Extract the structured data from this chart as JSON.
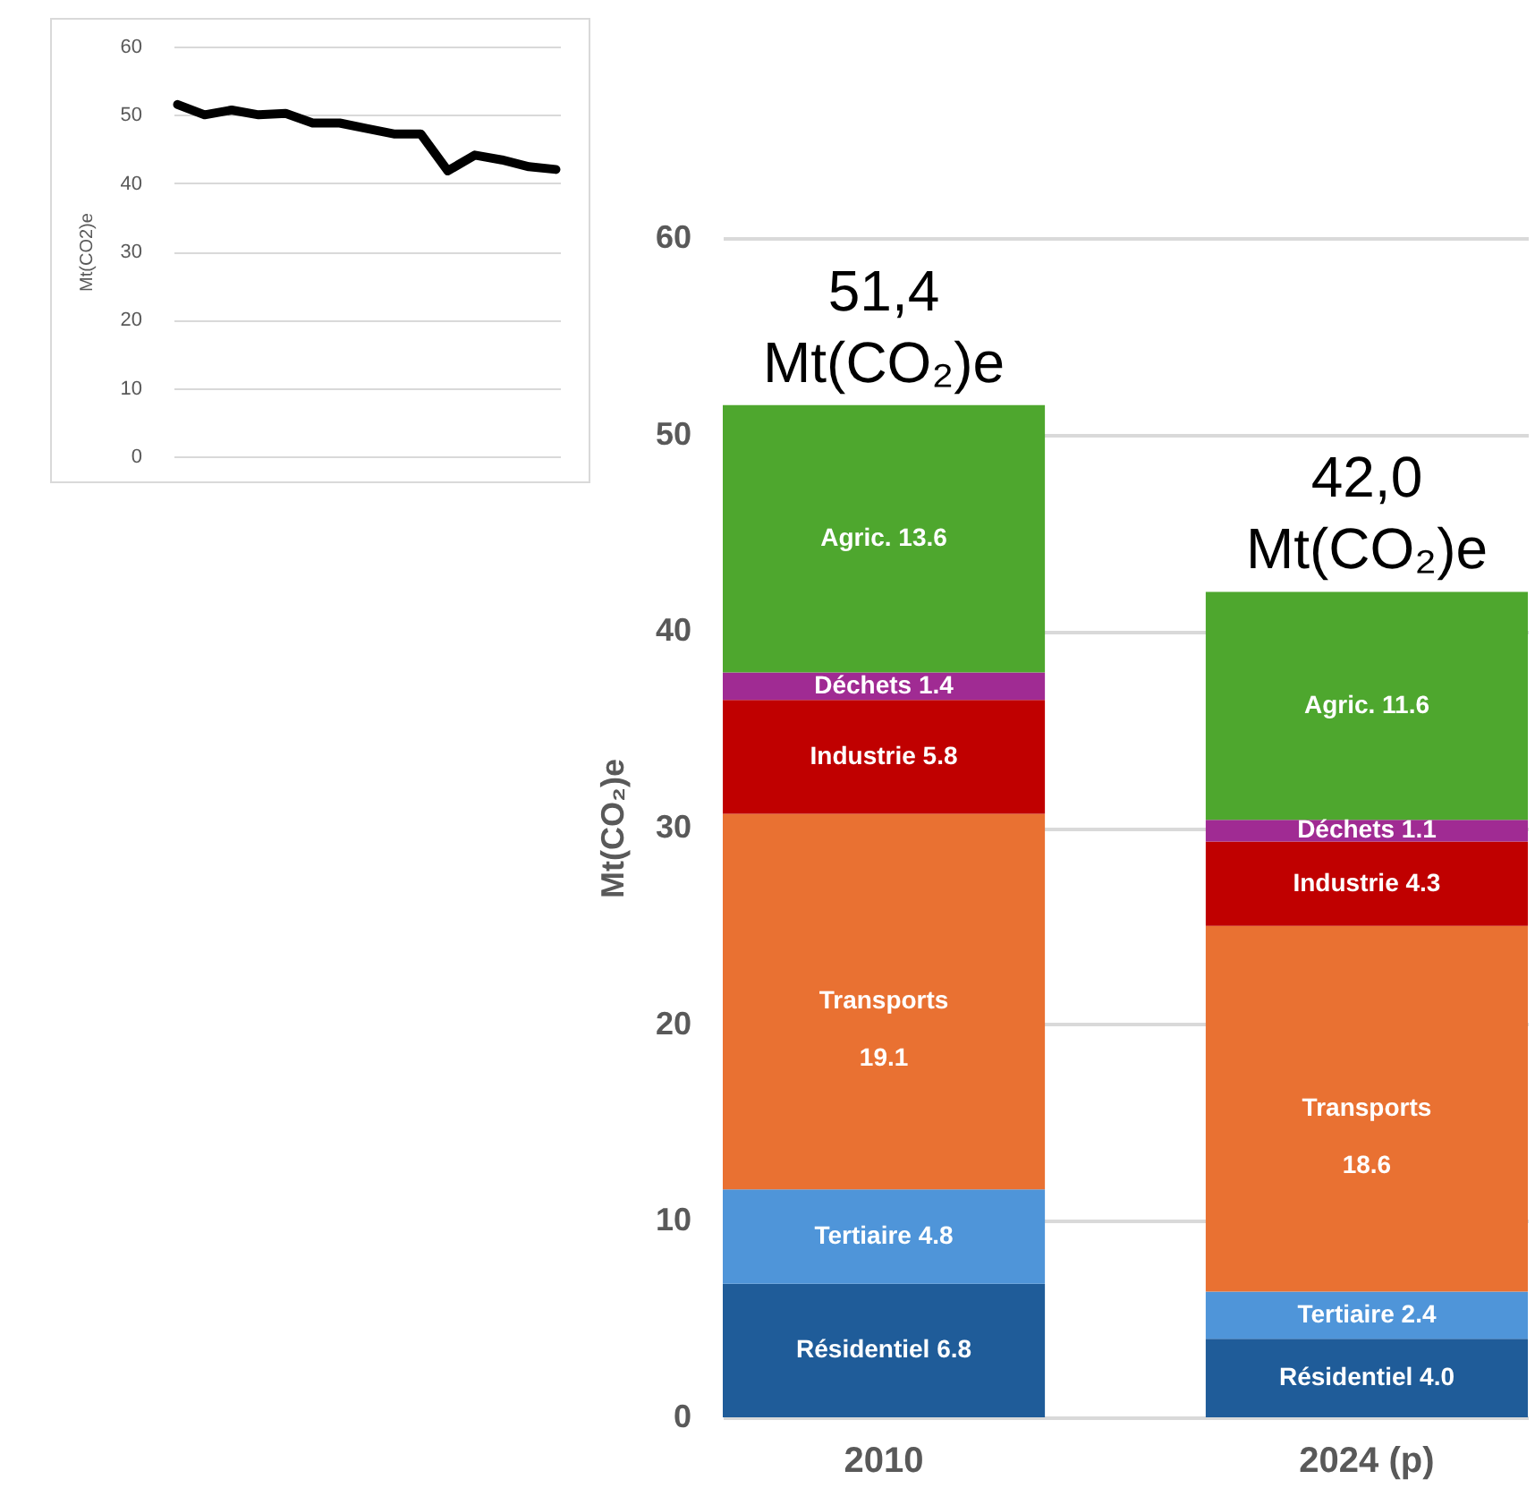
{
  "chart_data": [
    {
      "type": "line",
      "ylabel": "Mt(CO2)e",
      "categories": [
        null,
        null,
        null,
        null,
        null,
        null,
        null,
        null,
        null,
        null,
        null,
        null,
        null,
        null,
        null
      ],
      "series": [
        {
          "color": "#000000",
          "values": [
            51.5,
            50.0,
            50.7,
            50.0,
            50.2,
            48.8,
            48.8,
            48.0,
            47.2,
            47.2,
            41.8,
            44.1,
            43.4,
            42.4,
            42.0
          ]
        }
      ],
      "ylim": [
        0,
        60
      ],
      "yticks": [
        0,
        10,
        20,
        30,
        40,
        50,
        60
      ],
      "grid": "y",
      "tick_labels": "y"
    },
    {
      "type": "bar",
      "stacked": true,
      "ylabel": "Mt(CO₂)e",
      "categories": [
        "2010",
        "2024 (p)"
      ],
      "series": [
        {
          "name": "Résidentiel",
          "color": "#1f5c99",
          "values": [
            6.8,
            4.0
          ],
          "value_labels": [
            "6.8",
            "4.0"
          ]
        },
        {
          "name": "Tertiaire",
          "color": "#4f95d9",
          "values": [
            4.8,
            2.4
          ],
          "value_labels": [
            "4.8",
            "2.4"
          ]
        },
        {
          "name": "Transports",
          "color": "#e97132",
          "values": [
            19.1,
            18.6
          ],
          "value_labels": [
            "19.1",
            "18.6"
          ]
        },
        {
          "name": "Industrie",
          "color": "#c00000",
          "values": [
            5.8,
            4.3
          ],
          "value_labels": [
            "5.8",
            "4.3"
          ]
        },
        {
          "name": "Déchets",
          "color": "#a02b93",
          "values": [
            1.4,
            1.1
          ],
          "value_labels": [
            "1.4",
            "1.1"
          ]
        },
        {
          "name": "Agric.",
          "color": "#4ea72e",
          "values": [
            13.6,
            11.6
          ],
          "value_labels": [
            "13.6",
            "11.6"
          ]
        }
      ],
      "totals": [
        "51,4 Mt(CO₂)e",
        "42,0 Mt(CO₂)e"
      ],
      "ylim": [
        0,
        60
      ],
      "yticks": [
        0,
        10,
        20,
        30,
        40,
        50,
        60
      ],
      "grid": "y"
    }
  ]
}
